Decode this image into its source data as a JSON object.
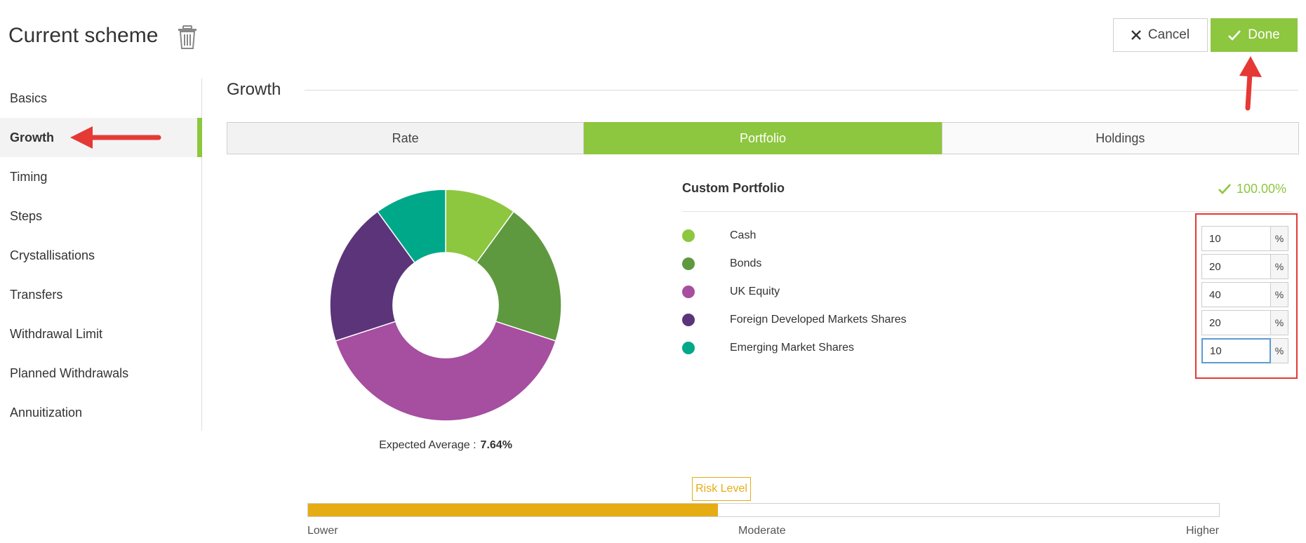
{
  "header": {
    "title": "Current scheme",
    "cancel_label": "Cancel",
    "done_label": "Done"
  },
  "sidebar": {
    "items": [
      {
        "label": "Basics"
      },
      {
        "label": "Growth",
        "active": true
      },
      {
        "label": "Timing"
      },
      {
        "label": "Steps"
      },
      {
        "label": "Crystallisations"
      },
      {
        "label": "Transfers"
      },
      {
        "label": "Withdrawal Limit"
      },
      {
        "label": "Planned Withdrawals"
      },
      {
        "label": "Annuitization"
      }
    ]
  },
  "section": {
    "title": "Growth"
  },
  "tabs": [
    {
      "label": "Rate"
    },
    {
      "label": "Portfolio",
      "active": true
    },
    {
      "label": "Holdings"
    }
  ],
  "portfolio": {
    "title": "Custom Portfolio",
    "total": "100.00%",
    "unit": "%",
    "expected_label": "Expected Average :",
    "expected_value": "7.64%",
    "assets": [
      {
        "label": "Cash",
        "value": "10",
        "color": "#8dc63f"
      },
      {
        "label": "Bonds",
        "value": "20",
        "color": "#5e9940"
      },
      {
        "label": "UK Equity",
        "value": "40",
        "color": "#a64ea0"
      },
      {
        "label": "Foreign Developed Markets Shares",
        "value": "20",
        "color": "#5c3479"
      },
      {
        "label": "Emerging Market Shares",
        "value": "10",
        "color": "#00a88a"
      }
    ]
  },
  "risk": {
    "label": "Risk Level",
    "level_fraction": 0.45,
    "lower": "Lower",
    "moderate": "Moderate",
    "higher": "Higher",
    "color": "#e6ac14"
  },
  "colors": {
    "accent": "#8dc63f",
    "annotation_red": "#e53935"
  },
  "icons": [
    "trash-icon",
    "close-icon",
    "check-icon"
  ]
}
